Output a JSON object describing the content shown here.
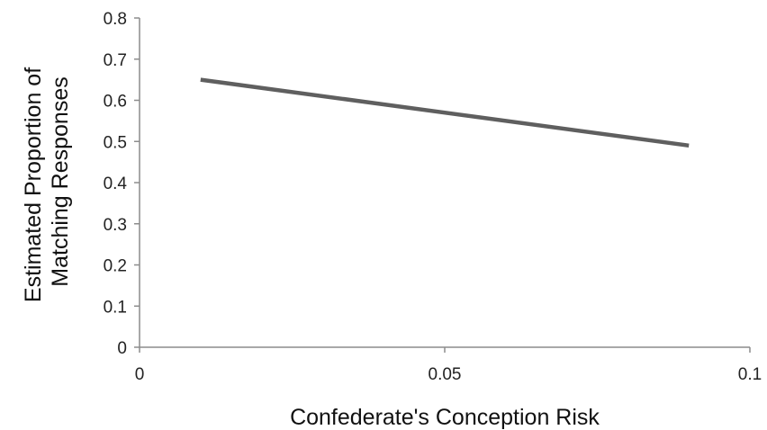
{
  "chart_data": {
    "type": "line",
    "title": "",
    "xlabel": "Confederate's Conception Risk",
    "ylabel_lines": [
      "Estimated Proportion of",
      "Matching Responses"
    ],
    "xlim": [
      0,
      0.1
    ],
    "ylim": [
      0,
      0.8
    ],
    "x_ticks": [
      "0",
      "0.05",
      "0.1"
    ],
    "y_ticks": [
      "0",
      "0.1",
      "0.2",
      "0.3",
      "0.4",
      "0.5",
      "0.6",
      "0.7",
      "0.8"
    ],
    "grid": false,
    "legend": "none",
    "series": [
      {
        "x": [
          0.01,
          0.09
        ],
        "y": [
          0.65,
          0.49
        ],
        "color": "#5f5f5f"
      }
    ],
    "axis_color": "#8c8c8c"
  }
}
